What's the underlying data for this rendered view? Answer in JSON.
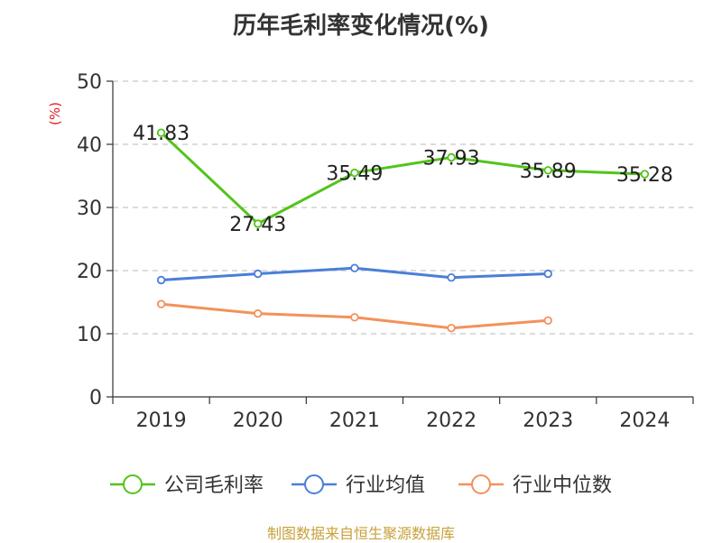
{
  "chart_data": {
    "type": "line",
    "title": "历年毛利率变化情况(%)",
    "ylabel": "(%)",
    "xlabel": "",
    "categories": [
      "2019",
      "2020",
      "2021",
      "2022",
      "2023",
      "2024"
    ],
    "ylim": [
      0,
      50
    ],
    "yticks": [
      0,
      10,
      20,
      30,
      40,
      50
    ],
    "grid": true,
    "legend_position": "bottom",
    "series": [
      {
        "name": "公司毛利率",
        "color": "#52c41a",
        "values": [
          41.83,
          27.43,
          35.49,
          37.93,
          35.89,
          35.28
        ],
        "labels": [
          "41.83",
          "27.43",
          "35.49",
          "37.93",
          "35.89",
          "35.28"
        ]
      },
      {
        "name": "行业均值",
        "color": "#4a7fd9",
        "values": [
          18.5,
          19.5,
          20.4,
          18.9,
          19.5,
          null
        ]
      },
      {
        "name": "行业中位数",
        "color": "#f4915a",
        "values": [
          14.7,
          13.2,
          12.6,
          10.9,
          12.1,
          null
        ]
      }
    ]
  },
  "source": "制图数据来自恒生聚源数据库"
}
